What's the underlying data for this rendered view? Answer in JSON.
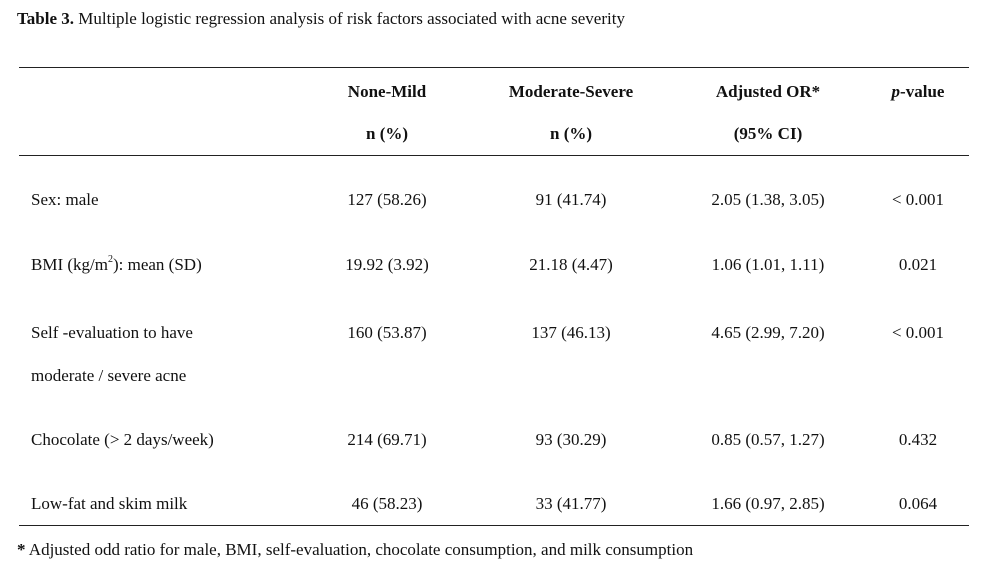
{
  "caption": {
    "label": "Table 3.",
    "text": " Multiple logistic regression analysis of risk factors associated with acne severity"
  },
  "headers": {
    "col1_line1": "None-Mild",
    "col1_line2": "n (%)",
    "col2_line1": "Moderate-Severe",
    "col2_line2": "n (%)",
    "col3_line1": "Adjusted OR*",
    "col3_line2": "(95% CI)",
    "col4_italic": "p",
    "col4_rest": "-value"
  },
  "rows": [
    {
      "label": "Sex: male",
      "none_mild": "127 (58.26)",
      "mod_severe": "91 (41.74)",
      "adj_or": "2.05 (1.38, 3.05)",
      "p": "< 0.001"
    },
    {
      "label_pre": "BMI (kg/m",
      "label_sup": "2",
      "label_post": "): mean (SD)",
      "none_mild": "19.92 (3.92)",
      "mod_severe": "21.18 (4.47)",
      "adj_or": "1.06 (1.01, 1.11)",
      "p": "0.021"
    },
    {
      "label": "Self -evaluation to have",
      "label_line2": "moderate / severe acne",
      "none_mild": "160 (53.87)",
      "mod_severe": "137 (46.13)",
      "adj_or": "4.65 (2.99, 7.20)",
      "p": "< 0.001"
    },
    {
      "label": "Chocolate (> 2 days/week)",
      "none_mild": "214 (69.71)",
      "mod_severe": "93 (30.29)",
      "adj_or": "0.85 (0.57, 1.27)",
      "p": "0.432"
    },
    {
      "label": "Low-fat and skim milk",
      "none_mild": "46 (58.23)",
      "mod_severe": "33 (41.77)",
      "adj_or": "1.66 (0.97, 2.85)",
      "p": "0.064"
    }
  ],
  "footnote": {
    "star": "*",
    "text": " Adjusted odd ratio for male, BMI, self-evaluation, chocolate consumption, and milk consumption"
  }
}
